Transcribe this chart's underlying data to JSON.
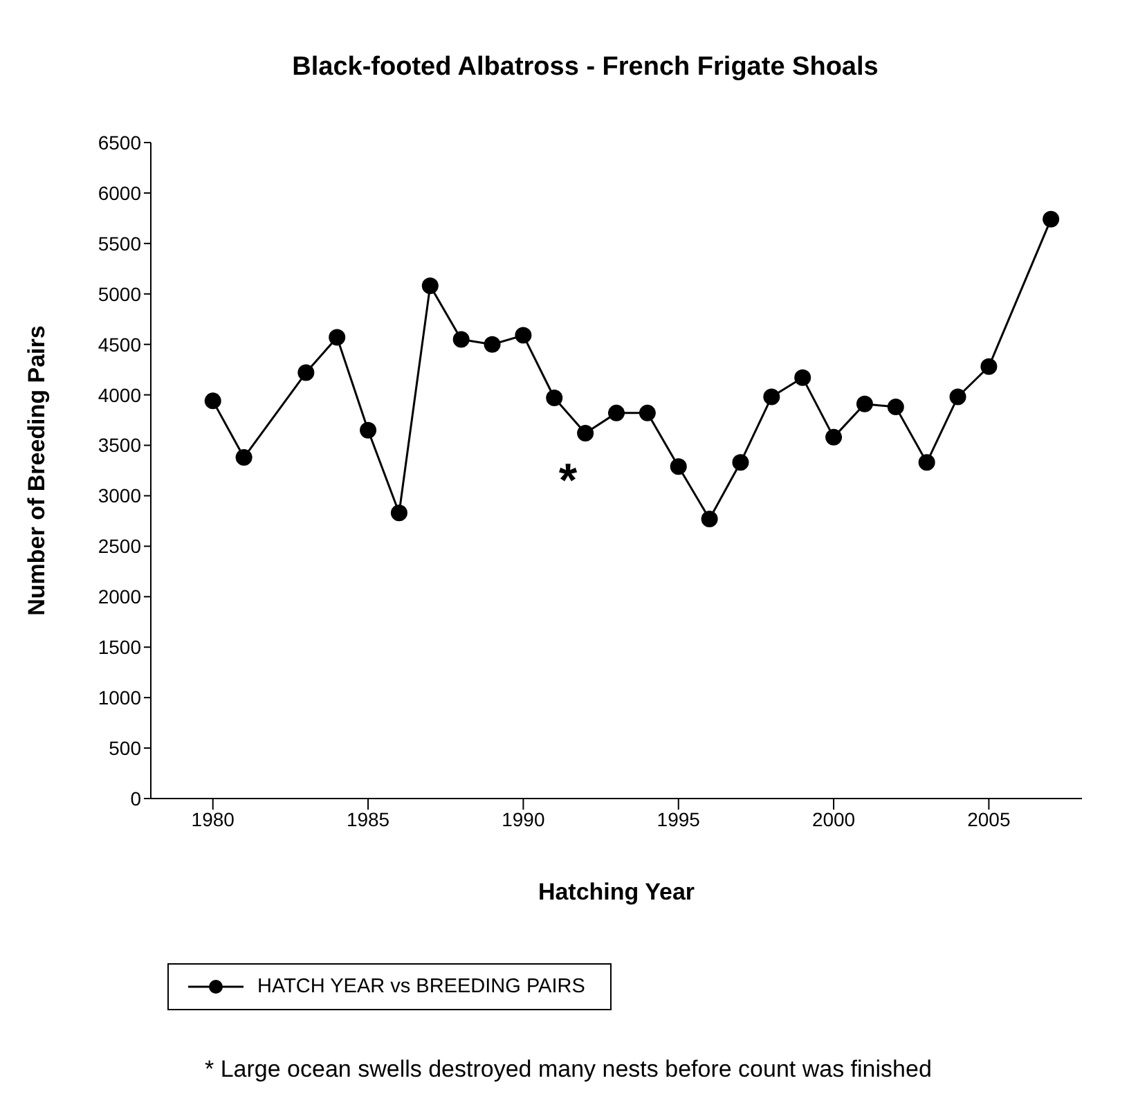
{
  "chart_data": {
    "type": "line",
    "title": "Black-footed Albatross - French Frigate Shoals",
    "xlabel": "Hatching Year",
    "ylabel": "Number of Breeding Pairs",
    "x": [
      1980,
      1981,
      1983,
      1984,
      1985,
      1986,
      1987,
      1988,
      1989,
      1990,
      1991,
      1992,
      1993,
      1994,
      1995,
      1996,
      1997,
      1998,
      1999,
      2000,
      2001,
      2002,
      2003,
      2004,
      2005,
      2007
    ],
    "series": [
      {
        "name": "HATCH YEAR vs BREEDING PAIRS",
        "color": "#000000",
        "values": [
          3940,
          3380,
          4220,
          4570,
          3650,
          2830,
          5080,
          4550,
          4500,
          4590,
          3970,
          3620,
          3820,
          3820,
          3290,
          2770,
          3330,
          3980,
          4170,
          3580,
          3910,
          3880,
          3330,
          3980,
          4280,
          5740
        ]
      }
    ],
    "xlim": [
      1978,
      2008
    ],
    "xticks": [
      1980,
      1985,
      1990,
      1995,
      2000,
      2005
    ],
    "ylim": [
      0,
      6500
    ],
    "yticks": [
      0,
      500,
      1000,
      1500,
      2000,
      2500,
      3000,
      3500,
      4000,
      4500,
      5000,
      5500,
      6000,
      6500
    ],
    "grid": false,
    "legend": "bottom left",
    "marker": "circle",
    "line_style": "solid",
    "annotations": [
      "*",
      "* Large ocean swells destroyed many nests before count was finished"
    ]
  }
}
